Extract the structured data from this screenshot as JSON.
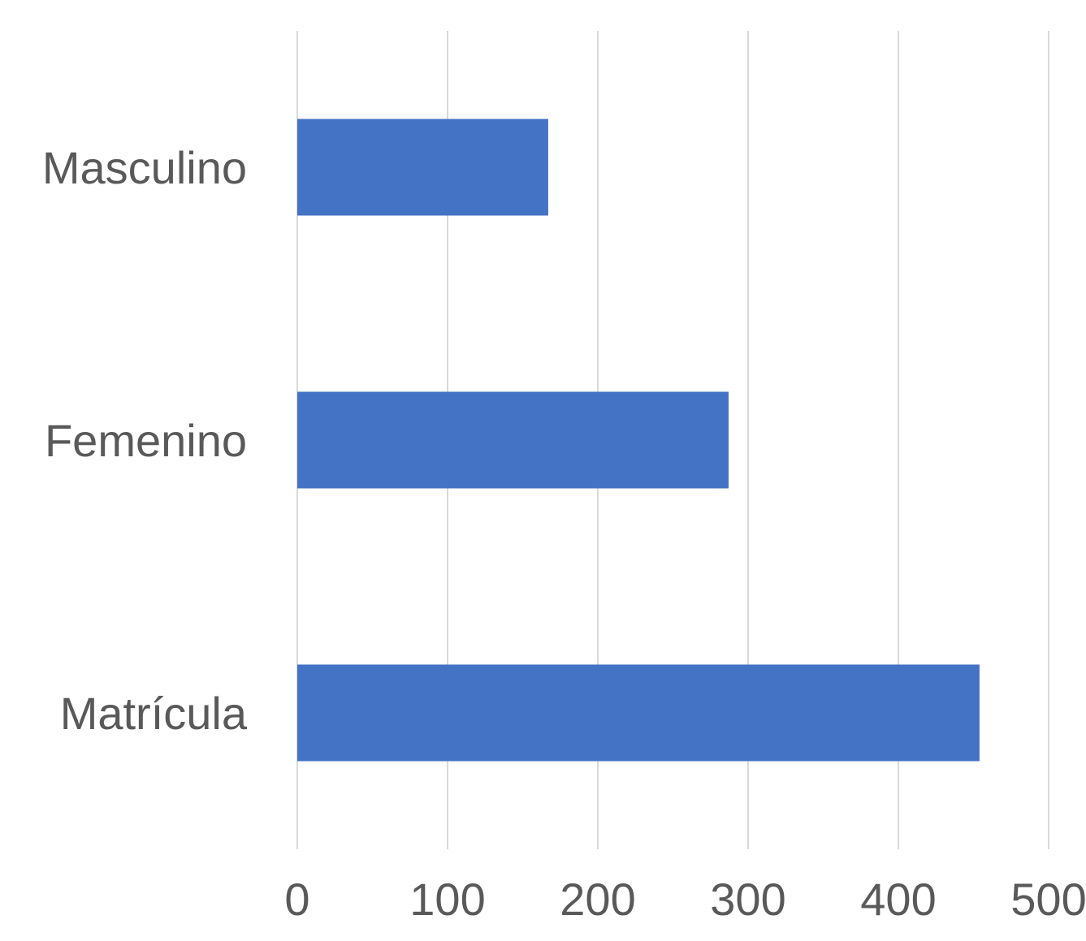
{
  "chart_data": {
    "type": "bar",
    "orientation": "horizontal",
    "categories": [
      "Masculino",
      "Femenino",
      "Matrícula"
    ],
    "values": [
      167,
      287,
      454
    ],
    "xlim": [
      0,
      500
    ],
    "x_ticks": [
      0,
      100,
      200,
      300,
      400,
      500
    ],
    "x_tick_labels": [
      "0",
      "100",
      "200",
      "300",
      "400",
      "500"
    ],
    "grid": "vertical",
    "legend": "none",
    "colors": {
      "bar": "#4472c4",
      "grid": "#d9d9d9",
      "text": "#595959"
    }
  }
}
